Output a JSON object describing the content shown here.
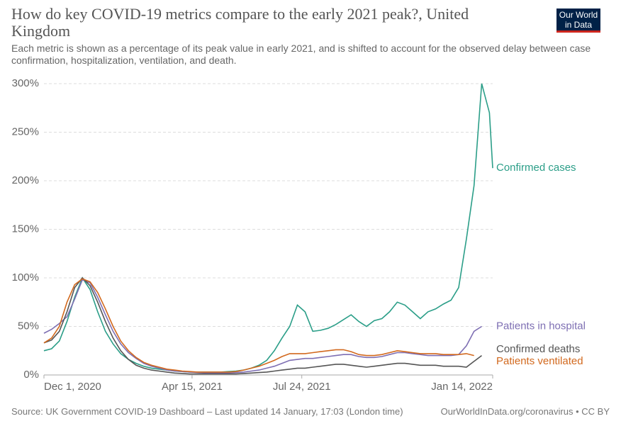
{
  "chart_data": {
    "type": "line",
    "title": "How do key COVID-19 metrics compare to the early 2021 peak?, United Kingdom",
    "subtitle": "Each metric is shown as a percentage of its peak value in early 2021, and is shifted to account for the observed delay between case confirmation, hospitalization, ventilation, and death.",
    "source": "Source: UK Government COVID-19 Dashboard – Last updated 14 January, 17:03 (London time)",
    "footer_link": "OurWorldInData.org/coronavirus • CC BY",
    "logo": [
      "Our World",
      "in Data"
    ],
    "x": [
      "2020-12-01",
      "2020-12-08",
      "2020-12-15",
      "2020-12-22",
      "2020-12-29",
      "2021-01-05",
      "2021-01-12",
      "2021-01-19",
      "2021-01-26",
      "2021-02-02",
      "2021-02-09",
      "2021-02-16",
      "2021-02-23",
      "2021-03-02",
      "2021-03-09",
      "2021-03-16",
      "2021-03-23",
      "2021-03-30",
      "2021-04-06",
      "2021-04-13",
      "2021-04-20",
      "2021-04-27",
      "2021-05-04",
      "2021-05-11",
      "2021-05-18",
      "2021-05-25",
      "2021-06-01",
      "2021-06-08",
      "2021-06-15",
      "2021-06-22",
      "2021-06-29",
      "2021-07-06",
      "2021-07-13",
      "2021-07-20",
      "2021-07-27",
      "2021-08-03",
      "2021-08-10",
      "2021-08-17",
      "2021-08-24",
      "2021-08-31",
      "2021-09-07",
      "2021-09-14",
      "2021-09-21",
      "2021-09-28",
      "2021-10-05",
      "2021-10-12",
      "2021-10-19",
      "2021-10-26",
      "2021-11-02",
      "2021-11-09",
      "2021-11-16",
      "2021-11-23",
      "2021-11-30",
      "2021-12-07",
      "2021-12-14",
      "2021-12-21",
      "2021-12-28",
      "2022-01-04",
      "2022-01-11",
      "2022-01-14"
    ],
    "xlim": [
      "2020-12-01",
      "2022-01-14"
    ],
    "xticks": [
      {
        "value": "2020-12-01",
        "label": "Dec 1, 2020"
      },
      {
        "value": "2021-04-15",
        "label": "Apr 15, 2021"
      },
      {
        "value": "2021-07-24",
        "label": "Jul 24, 2021"
      },
      {
        "value": "2022-01-14",
        "label": "Jan 14, 2022"
      }
    ],
    "ylim": [
      0,
      300
    ],
    "yticks": [
      {
        "value": 0,
        "label": "0%"
      },
      {
        "value": 50,
        "label": "50%"
      },
      {
        "value": 100,
        "label": "100%"
      },
      {
        "value": 150,
        "label": "150%"
      },
      {
        "value": 200,
        "label": "200%"
      },
      {
        "value": 250,
        "label": "250%"
      },
      {
        "value": 300,
        "label": "300%"
      }
    ],
    "grid": true,
    "series": [
      {
        "name": "Confirmed cases",
        "color": "#2b9e88",
        "values": [
          25,
          27,
          35,
          55,
          80,
          100,
          88,
          65,
          45,
          32,
          22,
          16,
          12,
          9,
          7,
          6,
          5,
          4,
          3.5,
          3,
          3,
          3,
          3,
          3,
          3.5,
          4,
          5,
          7,
          10,
          15,
          25,
          38,
          50,
          72,
          65,
          45,
          46,
          48,
          52,
          57,
          62,
          55,
          50,
          56,
          58,
          65,
          75,
          72,
          65,
          58,
          65,
          68,
          73,
          77,
          90,
          140,
          195,
          300,
          270,
          213
        ]
      },
      {
        "name": "Patients in hospital",
        "color": "#7e6fb3",
        "values": [
          43,
          47,
          53,
          60,
          78,
          98,
          95,
          80,
          62,
          45,
          32,
          23,
          17,
          12,
          9,
          7,
          5,
          4,
          3.5,
          3,
          2.5,
          2,
          2,
          2,
          2,
          2.5,
          3,
          4,
          5,
          7,
          9,
          12,
          15,
          16,
          17,
          17,
          18,
          19,
          20,
          21,
          21,
          19,
          18,
          18,
          19,
          21,
          23,
          23,
          22,
          21,
          20,
          20,
          20,
          20,
          21,
          30,
          45,
          50,
          null,
          null
        ]
      },
      {
        "name": "Confirmed deaths",
        "color": "#555555",
        "values": [
          33,
          36,
          45,
          65,
          90,
          100,
          92,
          75,
          55,
          38,
          25,
          16,
          10,
          7,
          5,
          4,
          3,
          2,
          1.5,
          1,
          1,
          1,
          1,
          1,
          1,
          1,
          1.5,
          2,
          2.5,
          3,
          4,
          5,
          6,
          7,
          7,
          8,
          9,
          10,
          11,
          11,
          10,
          9,
          8,
          9,
          10,
          11,
          12,
          12,
          11,
          10,
          10,
          10,
          9,
          9,
          9,
          8,
          14,
          20,
          null,
          null
        ]
      },
      {
        "name": "Patients ventilated",
        "color": "#d2691e",
        "values": [
          33,
          38,
          50,
          75,
          93,
          99,
          96,
          85,
          68,
          50,
          35,
          25,
          18,
          13,
          10,
          8,
          6,
          5,
          4,
          3.5,
          3,
          3,
          3,
          3,
          3,
          3.5,
          5,
          7,
          9,
          12,
          15,
          19,
          22,
          22,
          22,
          23,
          24,
          25,
          26,
          26,
          24,
          21,
          20,
          20,
          21,
          23,
          25,
          24,
          23,
          22,
          22,
          22,
          21,
          21,
          21,
          22,
          20,
          null,
          null,
          null
        ]
      }
    ]
  }
}
